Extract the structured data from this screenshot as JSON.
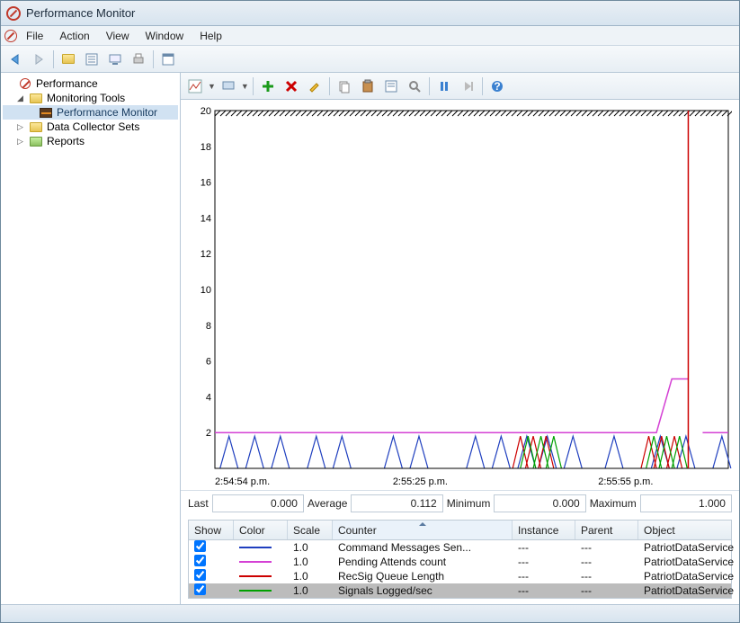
{
  "window": {
    "title": "Performance Monitor"
  },
  "menu": {
    "file": "File",
    "action": "Action",
    "view": "View",
    "window": "Window",
    "help": "Help"
  },
  "tree": {
    "root": "Performance",
    "monitoring_tools": "Monitoring Tools",
    "perf_monitor": "Performance Monitor",
    "data_collector_sets": "Data Collector Sets",
    "reports": "Reports"
  },
  "chart": {
    "y_max": 20,
    "y_ticks": [
      20,
      18,
      16,
      14,
      12,
      10,
      8,
      6,
      4,
      2
    ],
    "x_labels": [
      "2:54:54 p.m.",
      "2:55:25 p.m.",
      "2:55:55 p.m."
    ],
    "bg_color": "#ffffff",
    "grid_color": "#c0c0c0",
    "top_hatch_color": "#000000",
    "time_bar_color": "#cc0000",
    "time_bar_x": 0.922,
    "series": [
      {
        "name": "Command Messages Sen...",
        "color": "#1f3fbf",
        "scale": "1.0",
        "instance": "---",
        "parent": "---",
        "object": "PatriotDataService",
        "pattern": "tri-sparse"
      },
      {
        "name": "Pending Attends count",
        "color": "#d441d4",
        "scale": "1.0",
        "instance": "---",
        "parent": "---",
        "object": "PatriotDataService",
        "pattern": "level-step"
      },
      {
        "name": "RecSig Queue Length",
        "color": "#cc0000",
        "scale": "1.0",
        "instance": "---",
        "parent": "---",
        "object": "PatriotDataService",
        "pattern": "tri-cluster"
      },
      {
        "name": "Signals Logged/sec",
        "color": "#00a000",
        "scale": "1.0",
        "instance": "---",
        "parent": "---",
        "object": "PatriotDataService",
        "pattern": "tri-cluster2"
      }
    ]
  },
  "stats": {
    "last_label": "Last",
    "last": "0.000",
    "avg_label": "Average",
    "avg": "0.112",
    "min_label": "Minimum",
    "min": "0.000",
    "max_label": "Maximum",
    "max": "1.000"
  },
  "table": {
    "columns": {
      "show": "Show",
      "color": "Color",
      "scale": "Scale",
      "counter": "Counter",
      "instance": "Instance",
      "parent": "Parent",
      "object": "Object"
    }
  }
}
